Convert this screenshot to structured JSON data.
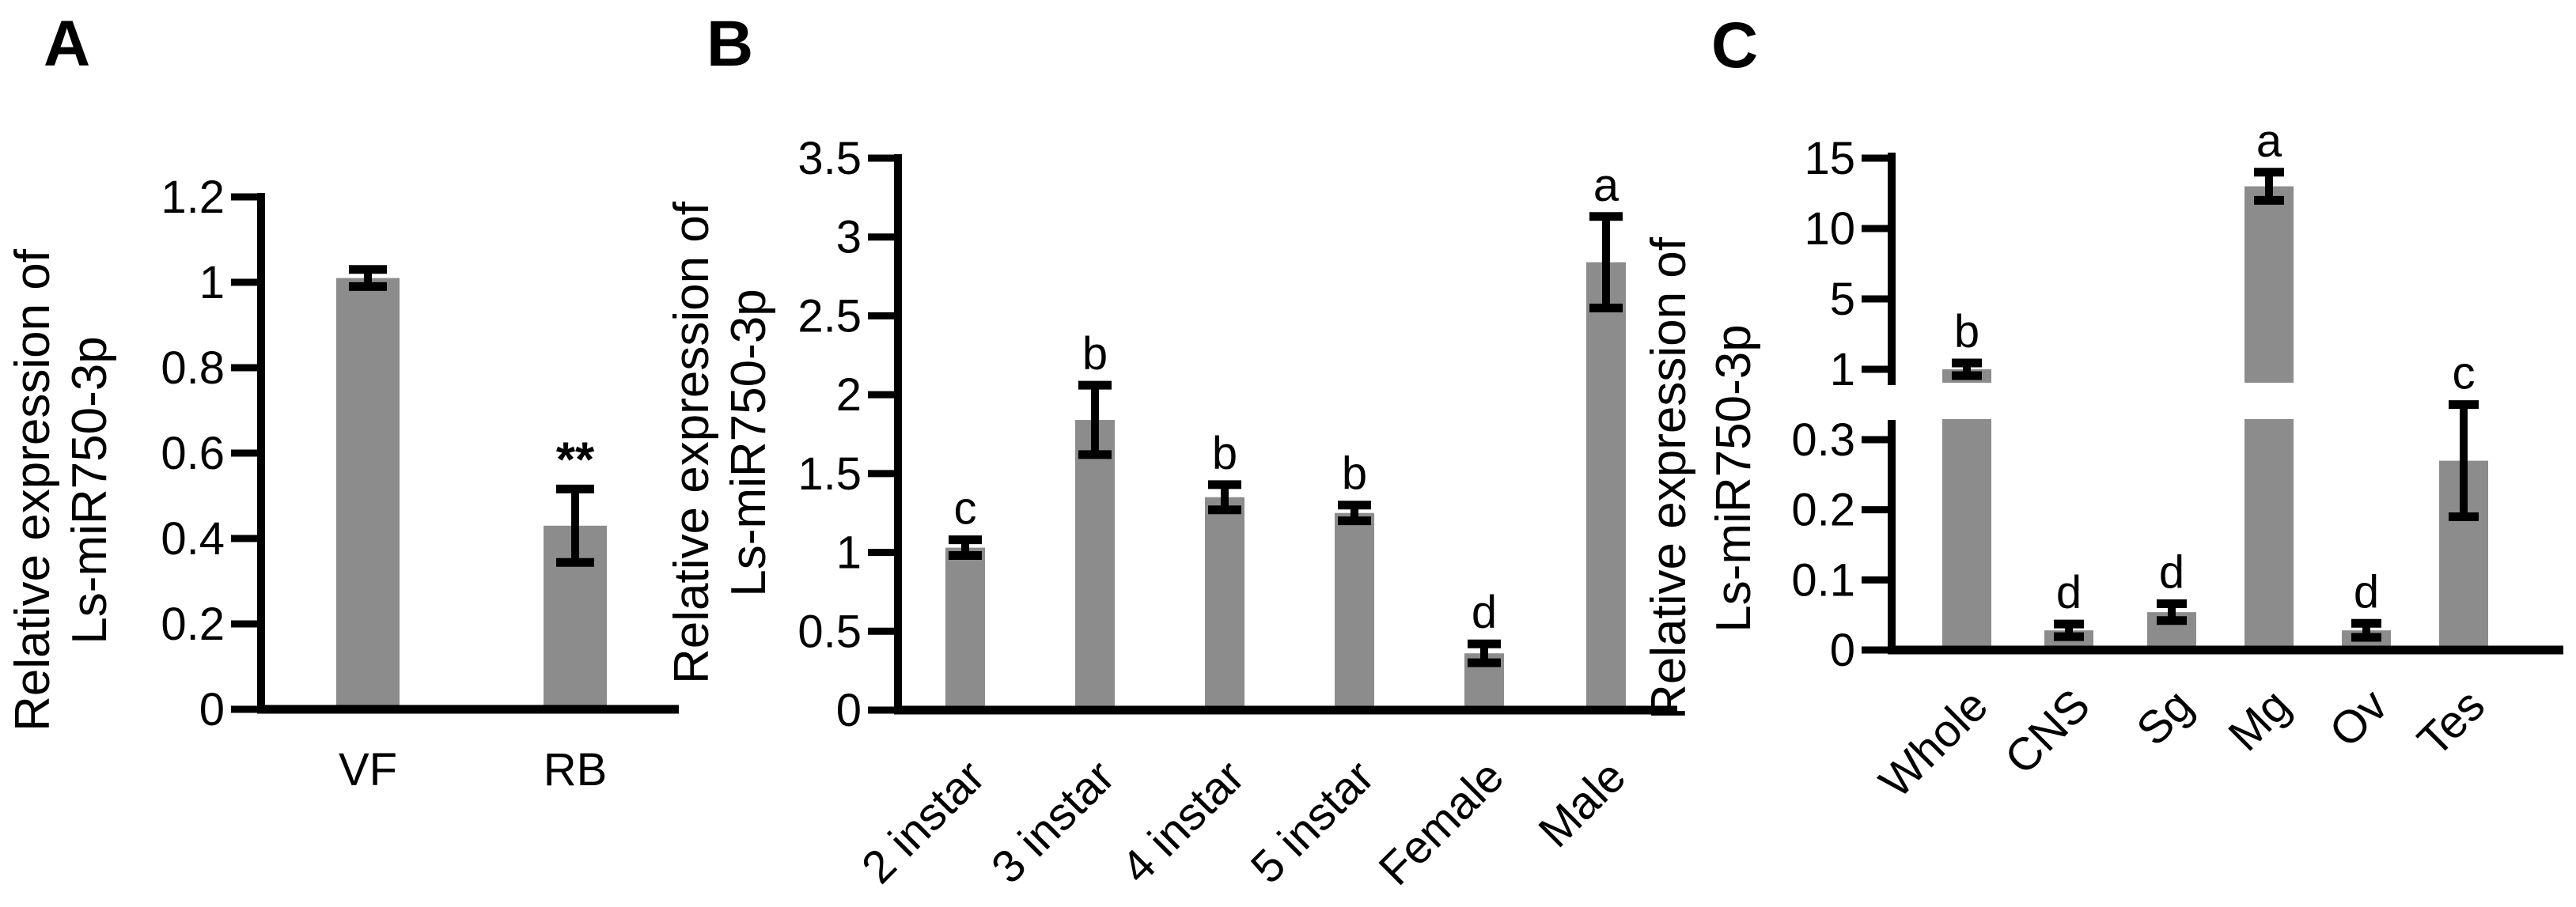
{
  "figure": {
    "background": "#ffffff",
    "bar_color": "#8c8c8c",
    "axis_color": "#000000",
    "error_color": "#000000",
    "text_color": "#000000"
  },
  "chart_data": [
    {
      "type": "bar",
      "panel_label": "A",
      "ylabel_lines": [
        "Relative expression of",
        "Ls-miR750-3p"
      ],
      "categories": [
        "VF",
        "RB"
      ],
      "values": [
        1.01,
        0.43
      ],
      "errors": [
        0.02,
        0.086
      ],
      "sig_labels": [
        "",
        "**"
      ],
      "yticks": [
        0,
        0.2,
        0.4,
        0.6,
        0.8,
        1,
        1.2
      ],
      "ylim": [
        0,
        1.2
      ],
      "x_tick_rotation_deg": 0,
      "grid": false,
      "legend": false
    },
    {
      "type": "bar",
      "panel_label": "B",
      "ylabel_lines": [
        "Relative expression of",
        "Ls-miR750-3p"
      ],
      "categories": [
        "2 instar",
        "3 instar",
        "4 instar",
        "5 instar",
        "Female",
        "Male"
      ],
      "values": [
        1.03,
        1.84,
        1.35,
        1.25,
        0.36,
        2.84
      ],
      "errors": [
        0.05,
        0.22,
        0.08,
        0.05,
        0.06,
        0.29
      ],
      "sig_labels": [
        "c",
        "b",
        "b",
        "b",
        "d",
        "a"
      ],
      "yticks": [
        0,
        0.5,
        1,
        1.5,
        2,
        2.5,
        3,
        3.5
      ],
      "ylim": [
        0,
        3.5
      ],
      "x_tick_rotation_deg": 45,
      "grid": false,
      "legend": false
    },
    {
      "type": "bar",
      "panel_label": "C",
      "ylabel_lines": [
        "Relative expression of",
        "Ls-miR750-3p"
      ],
      "categories": [
        "Whole",
        "CNS",
        "Sg",
        "Mg",
        "Ov",
        "Tes"
      ],
      "values": [
        1.0,
        0.028,
        0.054,
        13,
        0.028,
        0.27
      ],
      "errors": [
        0.05,
        0.008,
        0.012,
        1.0,
        0.01,
        0.08
      ],
      "sig_labels": [
        "b",
        "d",
        "d",
        "a",
        "d",
        "c"
      ],
      "axis_break": {
        "lower_ticks": [
          0,
          0.1,
          0.2,
          0.3
        ],
        "upper_ticks": [
          1,
          5,
          10,
          15
        ]
      },
      "x_tick_rotation_deg": 45,
      "grid": false,
      "legend": false
    }
  ]
}
